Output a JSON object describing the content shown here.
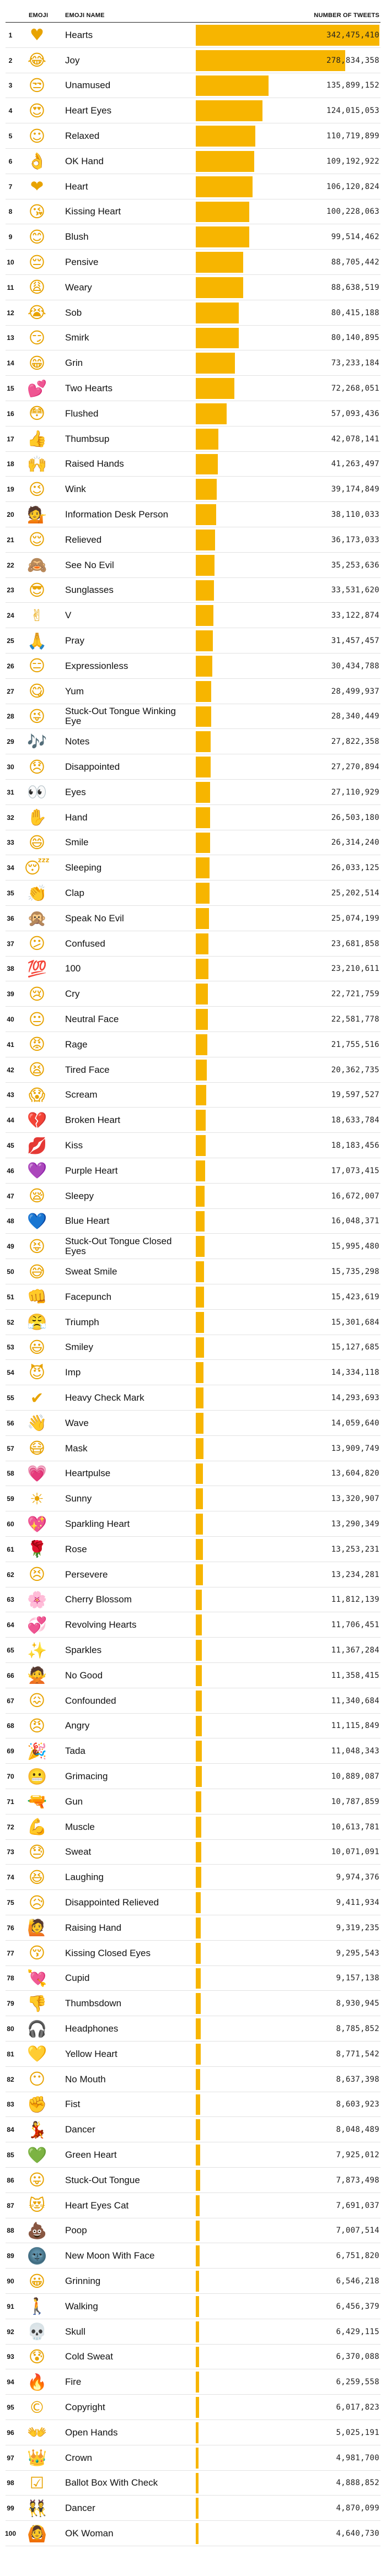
{
  "headers": {
    "rank": "",
    "emoji": "EMOJI",
    "name": "EMOJI NAME",
    "tweets": "NUMBER OF TWEETS"
  },
  "colors": {
    "bar": "#f7b500",
    "rule": "#222222",
    "row_line": "#e2e2e2"
  },
  "chart_data": {
    "type": "bar",
    "orientation": "horizontal",
    "title": "",
    "xlabel": "NUMBER OF TWEETS",
    "ylabel": "EMOJI NAME",
    "xlim": [
      0,
      342475410
    ],
    "grid": false,
    "categories": [
      "Hearts",
      "Joy",
      "Unamused",
      "Heart Eyes",
      "Relaxed",
      "OK Hand",
      "Heart",
      "Kissing Heart",
      "Blush",
      "Pensive",
      "Weary",
      "Sob",
      "Smirk",
      "Grin",
      "Two Hearts",
      "Flushed",
      "Thumbsup",
      "Raised Hands",
      "Wink",
      "Information Desk Person",
      "Relieved",
      "See No Evil",
      "Sunglasses",
      "V",
      "Pray",
      "Expressionless",
      "Yum",
      "Stuck-Out Tongue Winking Eye",
      "Notes",
      "Disappointed",
      "Eyes",
      "Hand",
      "Smile",
      "Sleeping",
      "Clap",
      "Speak No Evil",
      "Confused",
      "100",
      "Cry",
      "Neutral Face",
      "Rage",
      "Tired Face",
      "Scream",
      "Broken Heart",
      "Kiss",
      "Purple Heart",
      "Sleepy",
      "Blue Heart",
      "Stuck-Out Tongue Closed Eyes",
      "Sweat Smile",
      "Facepunch",
      "Triumph",
      "Smiley",
      "Imp",
      "Heavy Check Mark",
      "Wave",
      "Mask",
      "Heartpulse",
      "Sunny",
      "Sparkling Heart",
      "Rose",
      "Persevere",
      "Cherry Blossom",
      "Revolving Hearts",
      "Sparkles",
      "No Good",
      "Confounded",
      "Angry",
      "Tada",
      "Grimacing",
      "Gun",
      "Muscle",
      "Sweat",
      "Laughing",
      "Disappointed Relieved",
      "Raising Hand",
      "Kissing Closed Eyes",
      "Cupid",
      "Thumbsdown",
      "Headphones",
      "Yellow Heart",
      "No Mouth",
      "Fist",
      "Dancer",
      "Green Heart",
      "Stuck-Out Tongue",
      "Heart Eyes Cat",
      "Poop",
      "New Moon With Face",
      "Grinning",
      "Walking",
      "Skull",
      "Cold Sweat",
      "Fire",
      "Copyright",
      "Open Hands",
      "Crown",
      "Ballot Box With Check",
      "Dancer",
      "OK Woman"
    ],
    "values": [
      342475410,
      278834358,
      135899152,
      124015053,
      110719899,
      109192922,
      106120824,
      100228063,
      99514462,
      88705442,
      88638519,
      80415188,
      80140895,
      73233184,
      72268051,
      57093436,
      42078141,
      41263497,
      39174849,
      38110033,
      36173033,
      35253636,
      33531620,
      33122874,
      31457457,
      30434788,
      28499937,
      28340449,
      27822358,
      27270894,
      27110929,
      26503180,
      26314240,
      26033125,
      25202514,
      25074199,
      23681858,
      23210611,
      22721759,
      22581778,
      21755516,
      20362735,
      19597527,
      18633784,
      18183456,
      17073415,
      16672007,
      16048371,
      15995480,
      15735298,
      15423619,
      15301684,
      15127685,
      14334118,
      14293693,
      14059640,
      13909749,
      13604820,
      13320907,
      13290349,
      13253231,
      13234281,
      11812139,
      11706451,
      11367284,
      11358415,
      11340684,
      11115849,
      11048343,
      10889087,
      10787859,
      10613781,
      10071091,
      9974376,
      9411934,
      9319235,
      9295543,
      9157138,
      8930945,
      8785852,
      8771542,
      8637398,
      8603923,
      8048489,
      7925012,
      7873498,
      7691037,
      7007514,
      6751820,
      6546218,
      6456379,
      6429115,
      6370088,
      6259558,
      6017823,
      5025191,
      4981700,
      4888852,
      4870099,
      4640730
    ],
    "emoji_icons": [
      "♥",
      "😂",
      "😒",
      "😍",
      "☺",
      "👌",
      "❤",
      "😘",
      "😊",
      "😔",
      "😩",
      "😭",
      "😏",
      "😁",
      "💕",
      "😳",
      "👍",
      "🙌",
      "😉",
      "💁",
      "😌",
      "🙈",
      "😎",
      "✌",
      "🙏",
      "😑",
      "😋",
      "😜",
      "🎶",
      "😞",
      "👀",
      "✋",
      "😄",
      "😴",
      "👏",
      "🙊",
      "😕",
      "💯",
      "😢",
      "😐",
      "😡",
      "😫",
      "😱",
      "💔",
      "💋",
      "💜",
      "😪",
      "💙",
      "😝",
      "😅",
      "👊",
      "😤",
      "😃",
      "😈",
      "✔",
      "👋",
      "😷",
      "💗",
      "☀",
      "💖",
      "🌹",
      "😣",
      "🌸",
      "💞",
      "✨",
      "🙅",
      "😖",
      "😠",
      "🎉",
      "😬",
      "🔫",
      "💪",
      "😓",
      "😆",
      "😥",
      "🙋",
      "😚",
      "💘",
      "👎",
      "🎧",
      "💛",
      "😶",
      "✊",
      "💃",
      "💚",
      "😛",
      "😻",
      "💩",
      "🌚",
      "😀",
      "🚶",
      "💀",
      "😰",
      "🔥",
      "©",
      "👐",
      "👑",
      "☑",
      "👯",
      "🙆"
    ]
  }
}
